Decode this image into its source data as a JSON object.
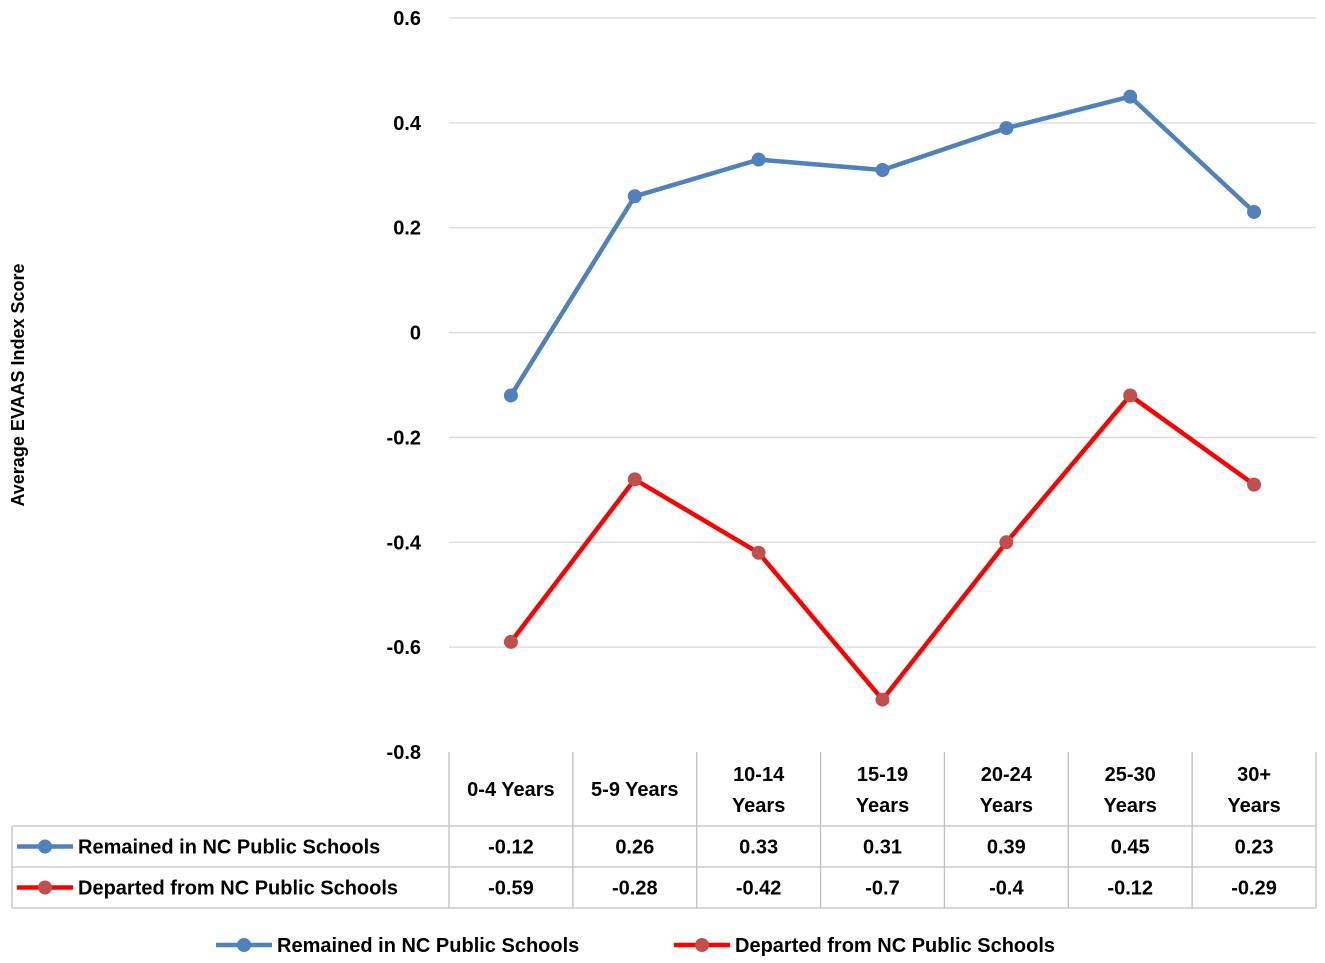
{
  "chart_data": {
    "type": "line",
    "title": "",
    "xlabel": "",
    "ylabel": "Average EVAAS Index Score",
    "ylim": [
      -0.8,
      0.6
    ],
    "yticks": [
      "0.6",
      "0.4",
      "0.2",
      "0",
      "-0.2",
      "-0.4",
      "-0.6",
      "-0.8"
    ],
    "ytick_values": [
      0.6,
      0.4,
      0.2,
      0,
      -0.2,
      -0.4,
      -0.6,
      -0.8
    ],
    "grid": true,
    "legend_position": "bottom",
    "categories": [
      [
        "0-4 Years"
      ],
      [
        "5-9 Years"
      ],
      [
        "10-14",
        "Years"
      ],
      [
        "15-19",
        "Years"
      ],
      [
        "20-24",
        "Years"
      ],
      [
        "25-30",
        "Years"
      ],
      [
        "30+",
        "Years"
      ]
    ],
    "series": [
      {
        "name": "Remained in NC Public Schools",
        "color": "#4f81bd",
        "marker_color": "#4f81bd",
        "values": [
          -0.12,
          0.26,
          0.33,
          0.31,
          0.39,
          0.45,
          0.23
        ],
        "labels": [
          "-0.12",
          "0.26",
          "0.33",
          "0.31",
          "0.39",
          "0.45",
          "0.23"
        ]
      },
      {
        "name": "Departed from NC Public Schools",
        "color": "#ff0000",
        "marker_color": "#c0504d",
        "values": [
          -0.59,
          -0.28,
          -0.42,
          -0.7,
          -0.4,
          -0.12,
          -0.29
        ],
        "labels": [
          "-0.59",
          "-0.28",
          "-0.42",
          "-0.7",
          "-0.4",
          "-0.12",
          "-0.29"
        ]
      }
    ]
  }
}
